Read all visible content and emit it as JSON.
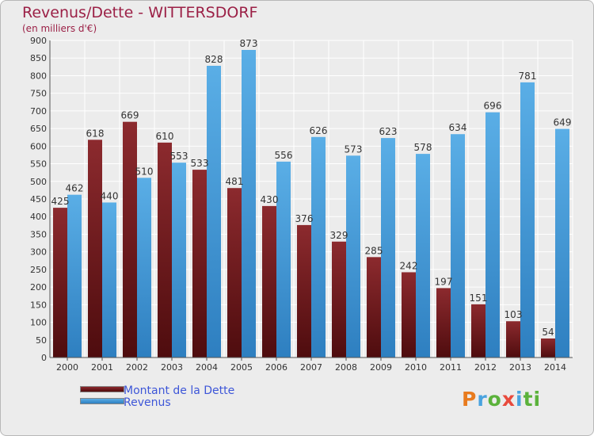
{
  "page": {
    "title": "Revenus/Dette - WITTERSDORF",
    "subtitle": "(en milliers d'€)"
  },
  "legend": {
    "items": [
      {
        "label": "Montant de la Dette",
        "color": "#7a1f22"
      },
      {
        "label": "Revenus",
        "color": "#4aa3df"
      }
    ]
  },
  "logo": {
    "text": "Proxiti"
  },
  "chart_data": {
    "type": "bar",
    "title": "Revenus/Dette - WITTERSDORF",
    "xlabel": "",
    "ylabel": "(en milliers d'€)",
    "ylim": [
      0,
      900
    ],
    "yticks": [
      0,
      50,
      100,
      150,
      200,
      250,
      300,
      350,
      400,
      450,
      500,
      550,
      600,
      650,
      700,
      750,
      800,
      850,
      900
    ],
    "grid": true,
    "legend_position": "bottom-left",
    "categories": [
      "2000",
      "2001",
      "2002",
      "2003",
      "2004",
      "2005",
      "2006",
      "2007",
      "2008",
      "2009",
      "2010",
      "2011",
      "2012",
      "2013",
      "2014"
    ],
    "series": [
      {
        "name": "Montant de la Dette",
        "color": "#7a1f22",
        "values": [
          425,
          618,
          669,
          610,
          533,
          481,
          430,
          376,
          329,
          285,
          242,
          197,
          151,
          103,
          54
        ]
      },
      {
        "name": "Revenus",
        "color": "#4aa3df",
        "values": [
          462,
          440,
          510,
          553,
          828,
          873,
          556,
          626,
          573,
          623,
          578,
          634,
          696,
          781,
          649
        ]
      }
    ]
  }
}
